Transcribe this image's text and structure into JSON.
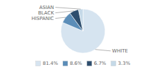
{
  "chart_data": {
    "type": "pie",
    "categories": [
      "WHITE",
      "HISPANIC",
      "BLACK",
      "ASIAN"
    ],
    "values": [
      81.4,
      8.6,
      6.7,
      3.3
    ],
    "value_labels": [
      "81.4%",
      "8.6%",
      "6.7%",
      "3.3%"
    ],
    "colors": [
      "#d6e4f0",
      "#5b8db8",
      "#2e4e6e",
      "#c5d9e8"
    ],
    "legend": "bottom"
  }
}
